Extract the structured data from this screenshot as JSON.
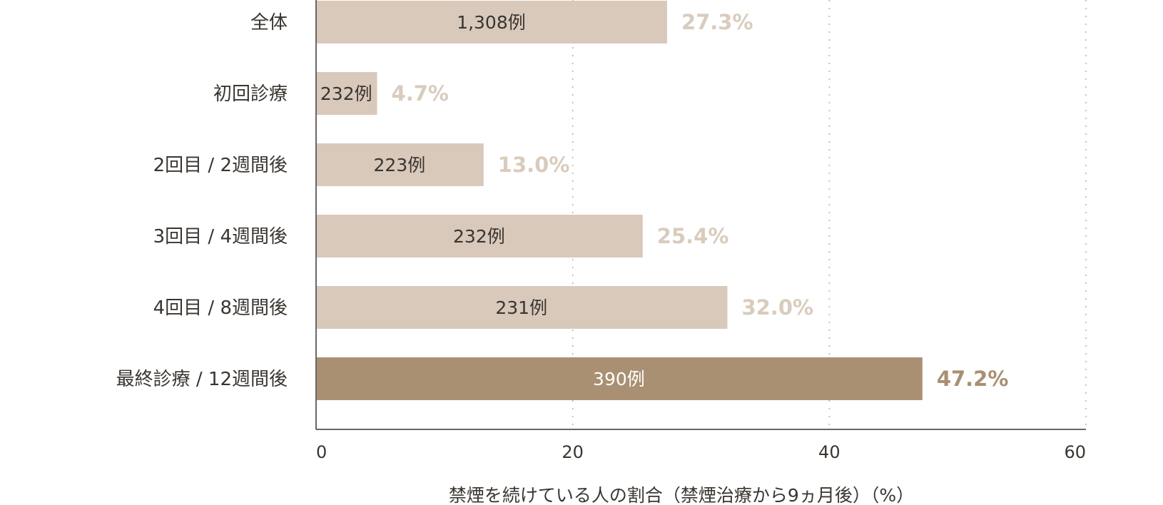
{
  "chart_data": {
    "type": "bar",
    "orientation": "horizontal",
    "categories": [
      "全体",
      "初回診療",
      "2回目 / 2週間後",
      "3回目 / 4週間後",
      "4回目 / 8週間後",
      "最終診療 / 12週間後"
    ],
    "values": [
      27.3,
      4.7,
      13.0,
      25.4,
      32.0,
      47.2
    ],
    "value_labels": [
      "27.3%",
      "4.7%",
      "13.0%",
      "25.4%",
      "32.0%",
      "47.2%"
    ],
    "case_labels": [
      "1,308例",
      "232例",
      "223例",
      "232例",
      "231例",
      "390例"
    ],
    "highlight_index": 5,
    "xlabel": "禁煙を続けている人の割合（禁煙治療から9ヵ月後）（%）",
    "xlim": [
      0,
      60
    ],
    "xticks": [
      0,
      20,
      40,
      60
    ],
    "grid": "vertical-dotted",
    "colors": {
      "bar": "#d8c9bb",
      "highlight_bar": "#a99072",
      "value_label": "#d9ccbd",
      "highlight_value_label": "#a99072",
      "axis": "#3a3530",
      "grid": "#b9b0a6"
    }
  }
}
